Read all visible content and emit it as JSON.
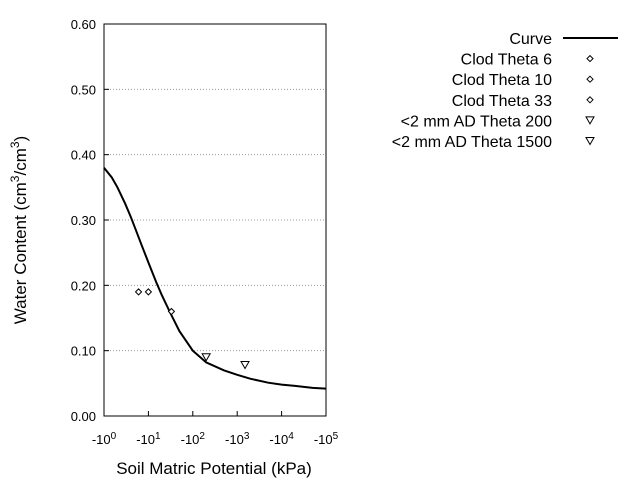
{
  "chart_data": {
    "type": "scatter",
    "title": "",
    "xlabel": "Soil Matric Potential (kPa)",
    "ylabel": {
      "prefix": "Water Content (cm",
      "sup1": "3",
      "mid": "/cm",
      "sup2": "3",
      "suffix": ")"
    },
    "x_scale": "log",
    "x_axis_note": "negative potential, log scale: -10^0 to -10^5 kPa",
    "xlim": [
      1,
      100000
    ],
    "ylim": [
      0.0,
      0.6
    ],
    "x_ticks": [
      {
        "value": 1,
        "base": "-10",
        "exp": "0"
      },
      {
        "value": 10,
        "base": "-10",
        "exp": "1"
      },
      {
        "value": 100,
        "base": "-10",
        "exp": "2"
      },
      {
        "value": 1000,
        "base": "-10",
        "exp": "3"
      },
      {
        "value": 10000,
        "base": "-10",
        "exp": "4"
      },
      {
        "value": 100000,
        "base": "-10",
        "exp": "5"
      }
    ],
    "y_ticks": [
      {
        "value": 0.0,
        "label": "0.00"
      },
      {
        "value": 0.1,
        "label": "0.10"
      },
      {
        "value": 0.2,
        "label": "0.20"
      },
      {
        "value": 0.3,
        "label": "0.30"
      },
      {
        "value": 0.4,
        "label": "0.40"
      },
      {
        "value": 0.5,
        "label": "0.50"
      },
      {
        "value": 0.6,
        "label": "0.60"
      }
    ],
    "grid": "horizontal dotted",
    "legend_position": "top-right",
    "series": [
      {
        "name": "Curve",
        "type": "line",
        "x": [
          1,
          1.5,
          2,
          3,
          4,
          5,
          7,
          10,
          15,
          20,
          30,
          50,
          100,
          200,
          500,
          1000,
          2000,
          5000,
          10000,
          20000,
          50000,
          100000
        ],
        "y": [
          0.38,
          0.365,
          0.35,
          0.325,
          0.305,
          0.288,
          0.262,
          0.235,
          0.205,
          0.185,
          0.16,
          0.13,
          0.1,
          0.082,
          0.07,
          0.063,
          0.057,
          0.051,
          0.048,
          0.046,
          0.043,
          0.042
        ]
      },
      {
        "name": "Clod Theta 6",
        "type": "scatter",
        "marker": "diamond",
        "x": [
          6
        ],
        "y": [
          0.19
        ]
      },
      {
        "name": "Clod Theta 10",
        "type": "scatter",
        "marker": "diamond",
        "x": [
          10
        ],
        "y": [
          0.19
        ]
      },
      {
        "name": "Clod Theta 33",
        "type": "scatter",
        "marker": "diamond",
        "x": [
          33
        ],
        "y": [
          0.16
        ]
      },
      {
        "name": "<2 mm AD Theta 200",
        "type": "scatter",
        "marker": "triangle-down",
        "x": [
          200
        ],
        "y": [
          0.09
        ]
      },
      {
        "name": "<2 mm AD Theta 1500",
        "type": "scatter",
        "marker": "triangle-down",
        "x": [
          1500
        ],
        "y": [
          0.078
        ]
      }
    ]
  }
}
